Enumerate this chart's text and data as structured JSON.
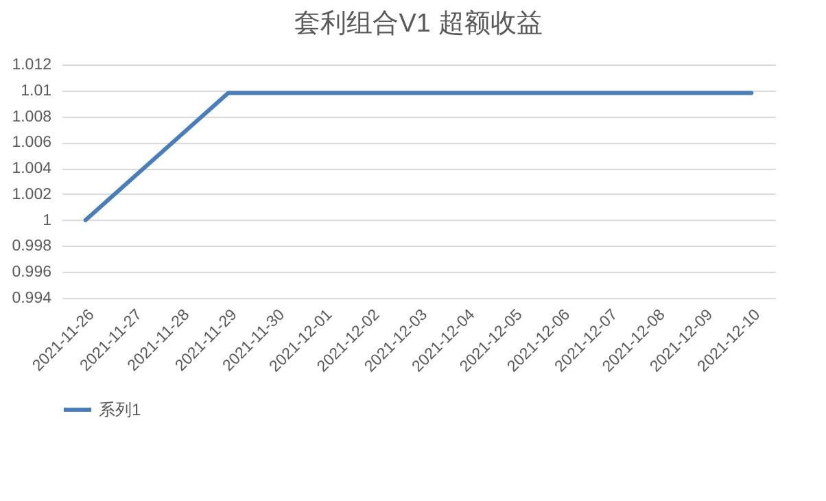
{
  "chart_data": {
    "type": "line",
    "title": "套利组合V1 超额收益",
    "x": [
      "2021-11-26",
      "2021-11-29",
      "2021-11-30",
      "2021-12-01",
      "2021-12-02",
      "2021-12-03",
      "2021-12-06",
      "2021-12-07",
      "2021-12-08",
      "2021-12-09",
      "2021-12-10"
    ],
    "series": [
      {
        "name": "系列1",
        "color": "#4a7ebb",
        "values": [
          1.0,
          1.0098,
          1.0098,
          1.0098,
          1.0098,
          1.0098,
          1.0098,
          1.0098,
          1.0098,
          1.0098,
          1.0098
        ]
      }
    ],
    "xlim": [
      "2021-11-25T12:00",
      "2021-12-10T12:00"
    ],
    "xticks": [
      "2021-11-26",
      "2021-11-27",
      "2021-11-28",
      "2021-11-29",
      "2021-11-30",
      "2021-12-01",
      "2021-12-02",
      "2021-12-03",
      "2021-12-04",
      "2021-12-05",
      "2021-12-06",
      "2021-12-07",
      "2021-12-08",
      "2021-12-09",
      "2021-12-10"
    ],
    "ylim": [
      0.994,
      1.012
    ],
    "yticks": [
      0.994,
      0.996,
      0.998,
      1,
      1.002,
      1.004,
      1.006,
      1.008,
      1.01,
      1.012
    ],
    "grid": "y",
    "legend": "bottom",
    "marker": "none",
    "line_style": "solid"
  }
}
